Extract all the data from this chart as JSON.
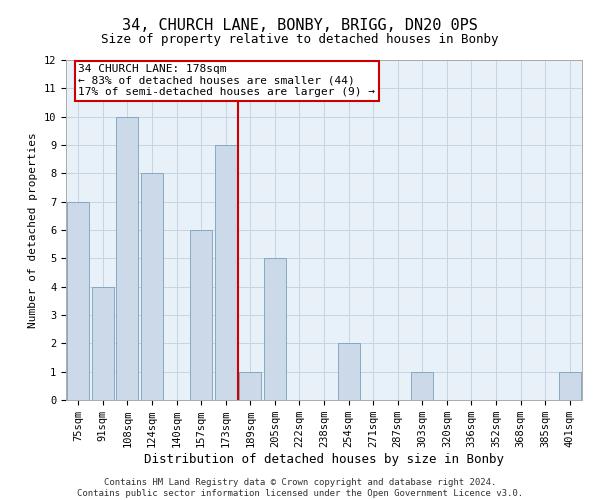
{
  "title": "34, CHURCH LANE, BONBY, BRIGG, DN20 0PS",
  "subtitle": "Size of property relative to detached houses in Bonby",
  "xlabel": "Distribution of detached houses by size in Bonby",
  "ylabel": "Number of detached properties",
  "categories": [
    "75sqm",
    "91sqm",
    "108sqm",
    "124sqm",
    "140sqm",
    "157sqm",
    "173sqm",
    "189sqm",
    "205sqm",
    "222sqm",
    "238sqm",
    "254sqm",
    "271sqm",
    "287sqm",
    "303sqm",
    "320sqm",
    "336sqm",
    "352sqm",
    "368sqm",
    "385sqm",
    "401sqm"
  ],
  "values": [
    7,
    4,
    10,
    8,
    0,
    6,
    9,
    1,
    5,
    0,
    0,
    2,
    0,
    0,
    1,
    0,
    0,
    0,
    0,
    0,
    1
  ],
  "bar_color": "#ccd9e8",
  "bar_edge_color": "#7a9fc0",
  "vline_x": 6.5,
  "vline_color": "#cc0000",
  "annotation_line1": "34 CHURCH LANE: 178sqm",
  "annotation_line2": "← 83% of detached houses are smaller (44)",
  "annotation_line3": "17% of semi-detached houses are larger (9) →",
  "annotation_box_color": "#cc0000",
  "annotation_box_fill": "#ffffff",
  "ylim": [
    0,
    12
  ],
  "yticks": [
    0,
    1,
    2,
    3,
    4,
    5,
    6,
    7,
    8,
    9,
    10,
    11,
    12
  ],
  "grid_color": "#c5d5e5",
  "bg_color": "#e8f0f8",
  "footer": "Contains HM Land Registry data © Crown copyright and database right 2024.\nContains public sector information licensed under the Open Government Licence v3.0.",
  "title_fontsize": 11,
  "subtitle_fontsize": 9,
  "xlabel_fontsize": 9,
  "ylabel_fontsize": 8,
  "tick_fontsize": 7.5,
  "annotation_fontsize": 8,
  "footer_fontsize": 6.5
}
